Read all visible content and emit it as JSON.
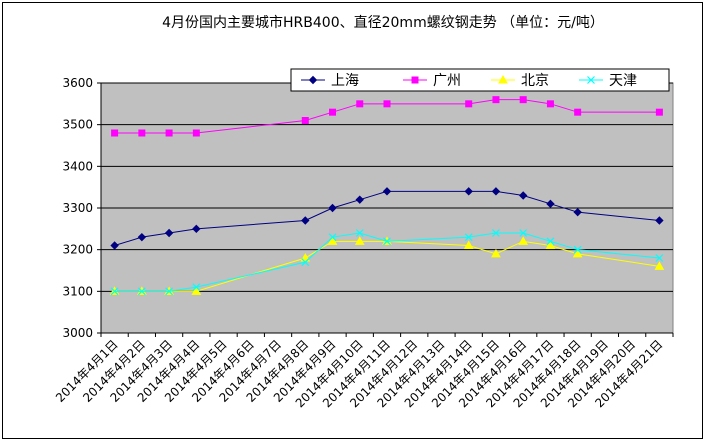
{
  "chart_data": {
    "type": "line",
    "title": "4月份国内主要城市HRB400、直径20mm螺纹钢走势  （单位：元/吨）",
    "xlabel": "",
    "ylabel": "",
    "ylim": [
      3000,
      3600
    ],
    "yticks": [
      3000,
      3100,
      3200,
      3300,
      3400,
      3500,
      3600
    ],
    "grid": "horizontal",
    "legend_position": "top",
    "categories": [
      "2014年4月1日",
      "2014年4月2日",
      "2014年4月3日",
      "2014年4月4日",
      "2014年4月5日",
      "2014年4月6日",
      "2014年4月7日",
      "2014年4月8日",
      "2014年4月9日",
      "2014年4月10日",
      "2014年4月11日",
      "2014年4月12日",
      "2014年4月13日",
      "2014年4月14日",
      "2014年4月15日",
      "2014年4月16日",
      "2014年4月17日",
      "2014年4月18日",
      "2014年4月19日",
      "2014年4月20日",
      "2014年4月21日"
    ],
    "series": [
      {
        "name": "上海",
        "color": "#000080",
        "marker": "diamond",
        "x": [
          0,
          1,
          2,
          3,
          7,
          8,
          9,
          10,
          13,
          14,
          15,
          16,
          17,
          20
        ],
        "values": [
          3210,
          3230,
          3240,
          3250,
          3270,
          3300,
          3320,
          3340,
          3340,
          3340,
          3330,
          3310,
          3290,
          3270
        ]
      },
      {
        "name": "广州",
        "color": "#ff00ff",
        "marker": "square",
        "x": [
          0,
          1,
          2,
          3,
          7,
          8,
          9,
          10,
          13,
          14,
          15,
          16,
          17,
          20
        ],
        "values": [
          3480,
          3480,
          3480,
          3480,
          3510,
          3530,
          3550,
          3550,
          3550,
          3560,
          3560,
          3550,
          3530,
          3530
        ]
      },
      {
        "name": "北京",
        "color": "#ffff00",
        "marker": "triangle",
        "x": [
          0,
          1,
          2,
          3,
          7,
          8,
          9,
          10,
          13,
          14,
          15,
          16,
          17,
          20
        ],
        "values": [
          3100,
          3100,
          3100,
          3100,
          3180,
          3220,
          3220,
          3220,
          3210,
          3190,
          3220,
          3210,
          3190,
          3160
        ]
      },
      {
        "name": "天津",
        "color": "#00ffff",
        "marker": "cross",
        "x": [
          0,
          1,
          2,
          3,
          7,
          8,
          9,
          10,
          13,
          14,
          15,
          16,
          17,
          20
        ],
        "values": [
          3100,
          3100,
          3100,
          3110,
          3170,
          3230,
          3240,
          3220,
          3230,
          3240,
          3240,
          3220,
          3200,
          3180
        ]
      }
    ]
  }
}
